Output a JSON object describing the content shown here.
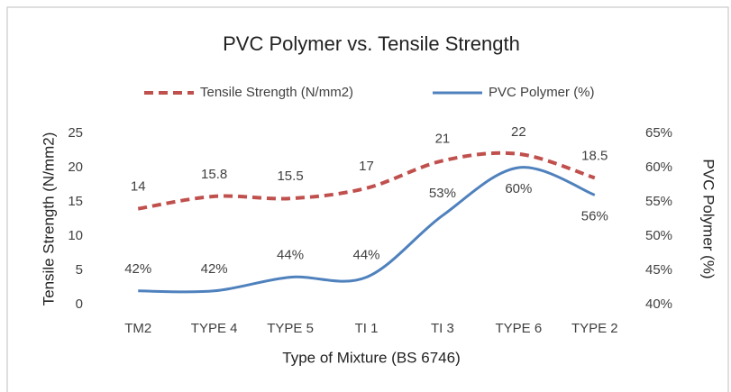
{
  "chart_data": {
    "type": "line",
    "title": "PVC Polymer vs. Tensile Strength",
    "x_label": "Type of Mixture (BS 6746)",
    "y_label": "Tensile Strength (N/mm2)",
    "y2_label": "PVC Polymer (%)",
    "categories": [
      "TM2",
      "TYPE 4",
      "TYPE 5",
      "TI 1",
      "TI 3",
      "TYPE 6",
      "TYPE 2"
    ],
    "series": [
      {
        "name": "Tensile Strength (N/mm2)",
        "color": "#c0504d",
        "dashed": true,
        "axis": "y",
        "values": [
          14,
          15.8,
          15.5,
          17,
          21,
          22,
          18.5
        ]
      },
      {
        "name": "PVC Polymer (%)",
        "color": "#4f81bd",
        "axis": "y2",
        "values": [
          42,
          42,
          44,
          44,
          53,
          60,
          56
        ],
        "value_labels": [
          "42%",
          "42%",
          "44%",
          "44%",
          "53%",
          "60%",
          "56%"
        ]
      }
    ],
    "ylim": [
      0,
      25
    ],
    "yticks": [
      0,
      5,
      10,
      15,
      20,
      25
    ],
    "y2lim": [
      40,
      65
    ],
    "y2ticks": [
      {
        "value": 40,
        "label": "40%"
      },
      {
        "value": 45,
        "label": "45%"
      },
      {
        "value": 50,
        "label": "50%"
      },
      {
        "value": 55,
        "label": "55%"
      },
      {
        "value": 60,
        "label": "60%"
      },
      {
        "value": 65,
        "label": "65%"
      }
    ],
    "legend": "top",
    "grid": false
  }
}
